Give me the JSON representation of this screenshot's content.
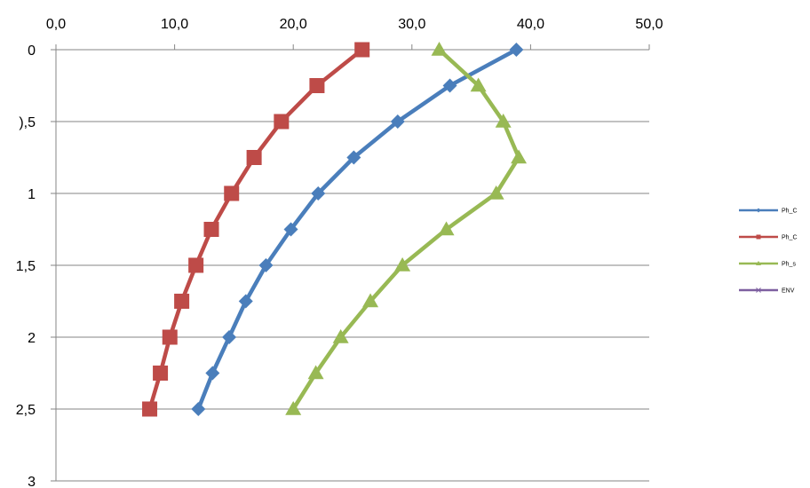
{
  "chart_data": {
    "type": "line",
    "title": "",
    "xlabel": "",
    "ylabel": "",
    "x_axis_position": "top",
    "y_axis_inverted": true,
    "xlim": [
      0,
      50
    ],
    "ylim": [
      0,
      3
    ],
    "x_ticks": [
      0,
      10,
      20,
      30,
      40,
      50
    ],
    "x_tick_labels": [
      "0,0",
      "10,0",
      "20,0",
      "30,0",
      "40,0",
      "50,0"
    ],
    "y_ticks": [
      0,
      0.5,
      1,
      1.5,
      2,
      2.5,
      3
    ],
    "y_tick_labels": [
      "0",
      "),5",
      "1",
      "1,5",
      "2",
      "2,5",
      "3"
    ],
    "grid": "horizontal",
    "legend_position": "right",
    "y": [
      0,
      0.25,
      0.5,
      0.75,
      1,
      1.25,
      1.5,
      1.75,
      2,
      2.25,
      2.5
    ],
    "series": [
      {
        "name": "Ph_C",
        "color": "#4a7ebb",
        "marker": "diamond",
        "x": [
          38.8,
          33.2,
          28.8,
          25.1,
          22.1,
          19.8,
          17.7,
          16.0,
          14.6,
          13.2,
          12.0
        ]
      },
      {
        "name": "Ph_C",
        "color": "#be4b48",
        "marker": "square",
        "x": [
          25.8,
          22.0,
          19.0,
          16.7,
          14.8,
          13.1,
          11.8,
          10.6,
          9.6,
          8.8,
          7.9
        ]
      },
      {
        "name": "Ph_s",
        "color": "#98b954",
        "marker": "triangle",
        "x": [
          32.3,
          35.6,
          37.7,
          39.0,
          37.1,
          32.9,
          29.2,
          26.5,
          24.0,
          21.9,
          20.0
        ]
      },
      {
        "name": "ENV",
        "color": "#7d5fa0",
        "marker": "x",
        "x": []
      }
    ]
  }
}
